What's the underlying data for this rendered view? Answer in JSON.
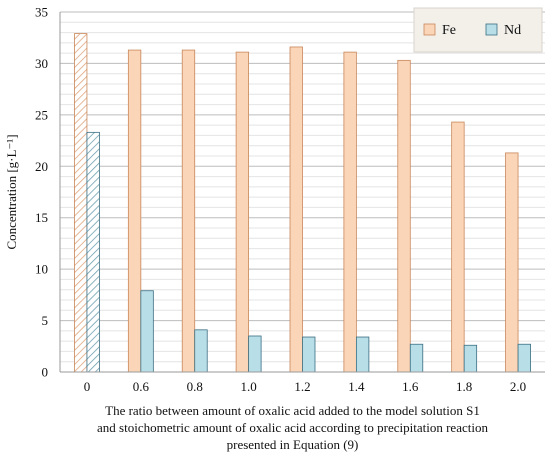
{
  "chart_data": {
    "type": "bar",
    "ylabel": "Concentration [g·L⁻¹]",
    "xlabel_lines": [
      "The ratio between amount of oxalic acid added to the model solution S1",
      "and stoichometric amount of oxalic acid according to precipitation reaction",
      "presented in Equation (9)"
    ],
    "categories": [
      "0",
      "0.6",
      "0.8",
      "1.0",
      "1.2",
      "1.4",
      "1.6",
      "1.8",
      "2.0"
    ],
    "series": [
      {
        "name": "Fe",
        "values": [
          32.9,
          31.3,
          31.3,
          31.1,
          31.6,
          31.1,
          30.3,
          24.3,
          21.3
        ],
        "color": "#fbd5b8",
        "stroke": "#c8875a"
      },
      {
        "name": "Nd",
        "values": [
          23.3,
          7.9,
          4.1,
          3.5,
          3.4,
          3.4,
          2.7,
          2.6,
          2.7
        ],
        "color": "#b8dfe8",
        "stroke": "#3a6e82"
      }
    ],
    "hatched_categories": [
      "0"
    ],
    "ylim": [
      0,
      35
    ],
    "yticks": [
      0,
      5,
      10,
      15,
      20,
      25,
      30,
      35
    ],
    "grid": true,
    "minor_grid_step": 1,
    "legend_position": "top-right"
  }
}
